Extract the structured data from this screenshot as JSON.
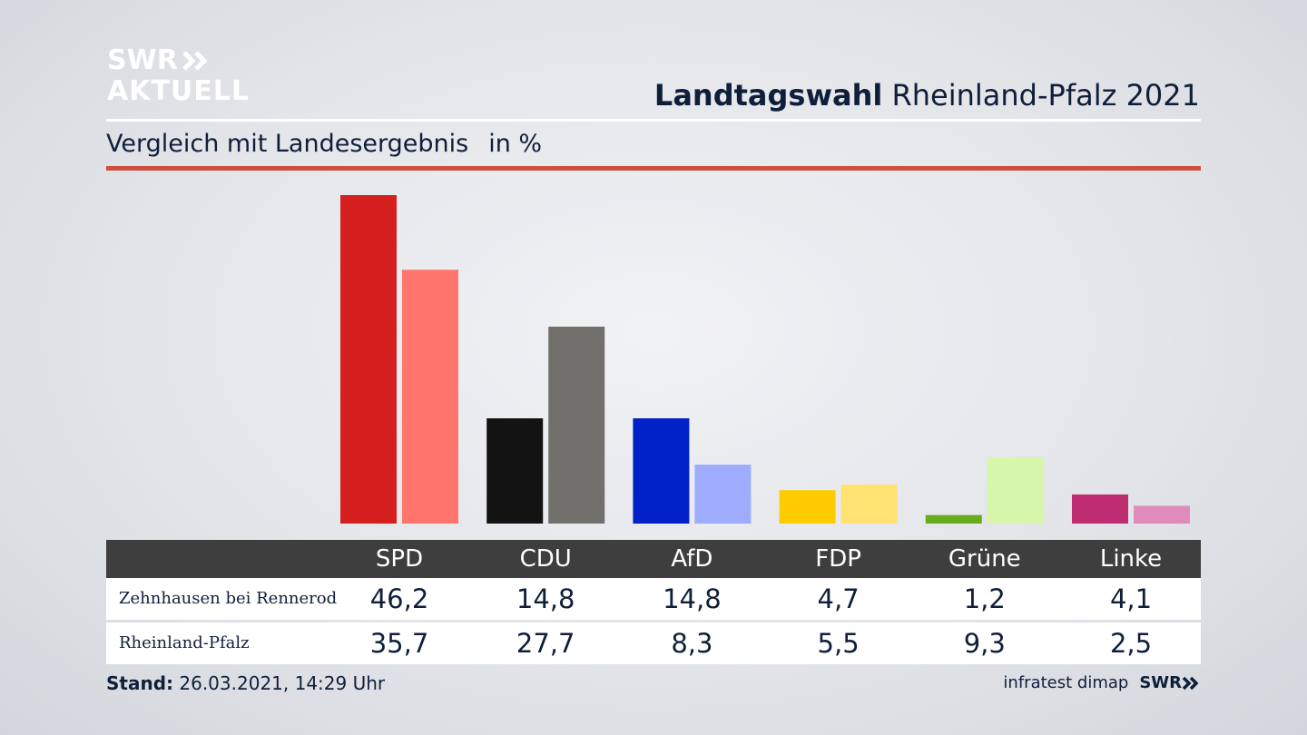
{
  "brand": {
    "line1": "SWR",
    "line2": "AKTUELL"
  },
  "header": {
    "title_bold": "Landtagswahl",
    "title_rest": "Rheinland-Pfalz 2021"
  },
  "subtitle": {
    "text": "Vergleich mit Landesergebnis",
    "unit": "in %"
  },
  "chart_data": {
    "type": "bar",
    "title": "Landtagswahl Rheinland-Pfalz 2021",
    "subtitle": "Vergleich mit Landesergebnis",
    "ylabel": "in %",
    "categories": [
      "SPD",
      "CDU",
      "AfD",
      "FDP",
      "Grüne",
      "Linke"
    ],
    "series": [
      {
        "name": "Zehnhausen bei Rennerod",
        "values": [
          46.2,
          14.8,
          14.8,
          4.7,
          1.2,
          4.1
        ],
        "colors": [
          "#d61f1f",
          "#131313",
          "#0021c8",
          "#ffcc00",
          "#6aaa1e",
          "#bf2e73"
        ]
      },
      {
        "name": "Rheinland-Pfalz",
        "values": [
          35.7,
          27.7,
          8.3,
          5.5,
          9.3,
          2.5
        ],
        "colors": [
          "#ff756b",
          "#72706d",
          "#9eacff",
          "#ffe272",
          "#d7f7ab",
          "#e08cbb"
        ]
      }
    ],
    "ylim": [
      0,
      46.2
    ],
    "grid": false,
    "legend": "table-below"
  },
  "table": {
    "rows": [
      {
        "label": "Zehnhausen bei Rennerod",
        "values": [
          "46,2",
          "14,8",
          "14,8",
          "4,7",
          "1,2",
          "4,1"
        ]
      },
      {
        "label": "Rheinland-Pfalz",
        "values": [
          "35,7",
          "27,7",
          "8,3",
          "5,5",
          "9,3",
          "2,5"
        ]
      }
    ]
  },
  "footer": {
    "stand_label": "Stand:",
    "stand_value": "26.03.2021, 14:29 Uhr",
    "source": "infratest dimap",
    "brand": "SWR"
  }
}
